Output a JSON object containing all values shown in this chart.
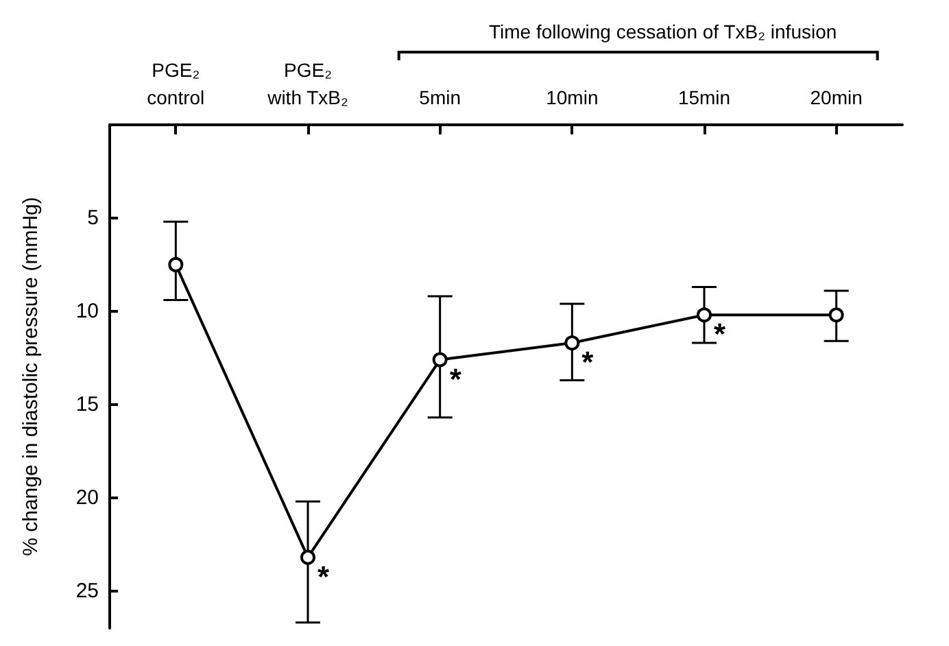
{
  "chart_data": {
    "type": "line",
    "ylabel": "% change in diastolic pressure (mmHg)",
    "categories": [
      "PGE₂\ncontrol",
      "PGE₂\nwith TxB₂",
      "5min",
      "10min",
      "15min",
      "20min"
    ],
    "values": [
      7.5,
      23.2,
      12.6,
      11.7,
      10.2,
      10.2
    ],
    "errors": [
      [
        5.2,
        9.4
      ],
      [
        20.2,
        26.7
      ],
      [
        9.2,
        15.7
      ],
      [
        9.6,
        13.7
      ],
      [
        8.7,
        11.7
      ],
      [
        8.9,
        11.6
      ]
    ],
    "color": "#000000",
    "marker": "circle",
    "line_style": "solid",
    "ylim": [
      27,
      0
    ],
    "yticks": [
      5,
      10,
      15,
      20,
      25
    ],
    "annotations": [
      "Time following cessation of TxB₂ infusion",
      {
        "text": "*",
        "x": "PGE₂\nwith TxB₂",
        "y": 23.2
      },
      {
        "text": "*",
        "x": "5min",
        "y": 12.6
      },
      {
        "text": "*",
        "x": "10min",
        "y": 11.7
      },
      {
        "text": "*",
        "x": "15min",
        "y": 10.2
      }
    ]
  }
}
